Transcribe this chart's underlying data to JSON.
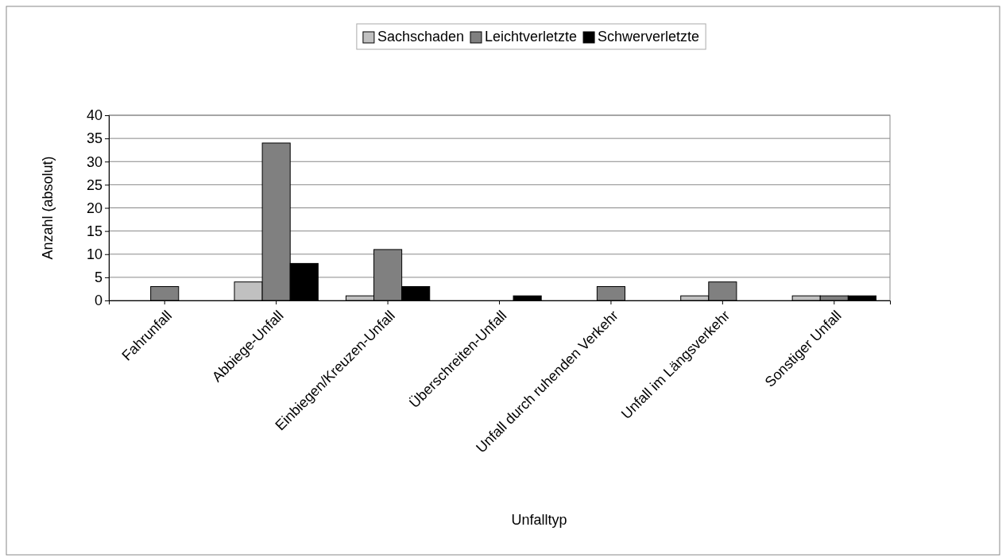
{
  "chart_data": {
    "type": "bar",
    "xlabel": "Unfalltyp",
    "ylabel": "Anzahl (absolut)",
    "categories": [
      "Fahrunfall",
      "Abbiege-Unfall",
      "Einbiegen/Kreuzen-Unfall",
      "Überschreiten-Unfall",
      "Unfall durch ruhenden Verkehr",
      "Unfall im Längsverkehr",
      "Sonstiger Unfall"
    ],
    "series": [
      {
        "name": "Sachschaden",
        "color": "#c0c0c0",
        "values": [
          0,
          4,
          1,
          0,
          0,
          1,
          1
        ]
      },
      {
        "name": "Leichtverletzte",
        "color": "#808080",
        "values": [
          3,
          34,
          11,
          0,
          3,
          4,
          1
        ]
      },
      {
        "name": "Schwerverletzte",
        "color": "#000000",
        "values": [
          0,
          8,
          3,
          1,
          0,
          0,
          1
        ]
      }
    ],
    "ylim": [
      0,
      40
    ],
    "yticks": [
      0,
      5,
      10,
      15,
      20,
      25,
      30,
      35,
      40
    ],
    "grid": "y",
    "legend": "top"
  }
}
